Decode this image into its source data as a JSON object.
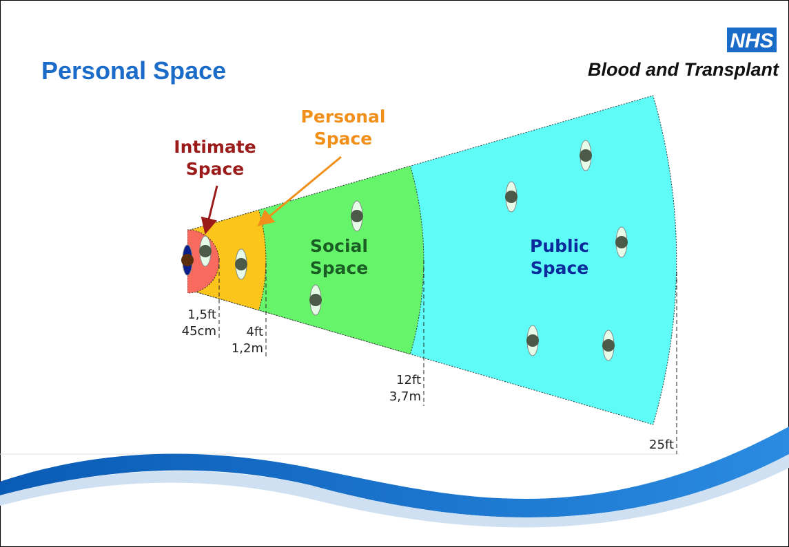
{
  "header": {
    "title": "Personal Space",
    "logo": "NHS",
    "organisation": "Blood and Transplant"
  },
  "zones": [
    {
      "lines": [
        "Intimate",
        "Space"
      ]
    },
    {
      "lines": [
        "Personal",
        "Space"
      ]
    },
    {
      "lines": [
        "Social",
        "Space"
      ]
    },
    {
      "lines": [
        "Public",
        "Space"
      ]
    }
  ],
  "distances": [
    {
      "lines": [
        "1,5ft",
        "45cm"
      ]
    },
    {
      "lines": [
        "4ft",
        "1,2m"
      ]
    },
    {
      "lines": [
        "12ft",
        "3,7m"
      ]
    },
    {
      "lines": [
        "25ft"
      ]
    }
  ]
}
